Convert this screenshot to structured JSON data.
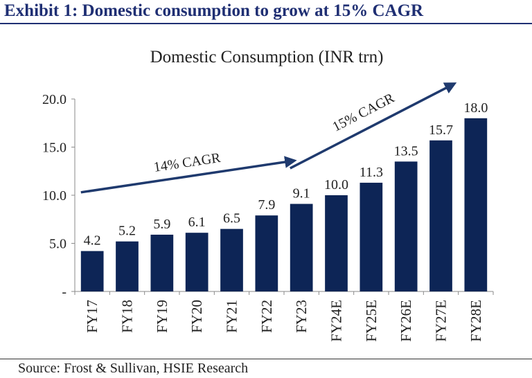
{
  "header": {
    "exhibit_title": "Exhibit 1: Domestic consumption to grow at 15% CAGR"
  },
  "footer": {
    "source": "Source: Frost & Sullivan, HSIE Research"
  },
  "chart_data": {
    "type": "bar",
    "title": "Domestic Consumption (INR trn)",
    "xlabel": "",
    "ylabel": "",
    "categories": [
      "FY17",
      "FY18",
      "FY19",
      "FY20",
      "FY21",
      "FY22",
      "FY23",
      "FY24E",
      "FY25E",
      "FY26E",
      "FY27E",
      "FY28E"
    ],
    "values": [
      4.2,
      5.2,
      5.9,
      6.1,
      6.5,
      7.9,
      9.1,
      10.0,
      11.3,
      13.5,
      15.7,
      18.0
    ],
    "value_labels": [
      "4.2",
      "5.2",
      "5.9",
      "6.1",
      "6.5",
      "7.9",
      "9.1",
      "10.0",
      "11.3",
      "13.5",
      "15.7",
      "18.0"
    ],
    "ylim": [
      0,
      20
    ],
    "yticks": [
      0,
      5,
      10,
      15,
      20
    ],
    "ytick_labels": [
      "-",
      "5.0",
      "10.0",
      "15.0",
      "20.0"
    ],
    "grid": false,
    "legend": "none",
    "bar_color": "#0d2556",
    "annotations": [
      {
        "text": "14% CAGR",
        "from_category": "FY17",
        "to_category": "FY23",
        "from_value": 10.3,
        "to_value": 13.6
      },
      {
        "text": "15% CAGR",
        "from_category": "FY23",
        "to_category": "FY27E",
        "from_value": 12.8,
        "to_value": 21.6
      }
    ]
  }
}
